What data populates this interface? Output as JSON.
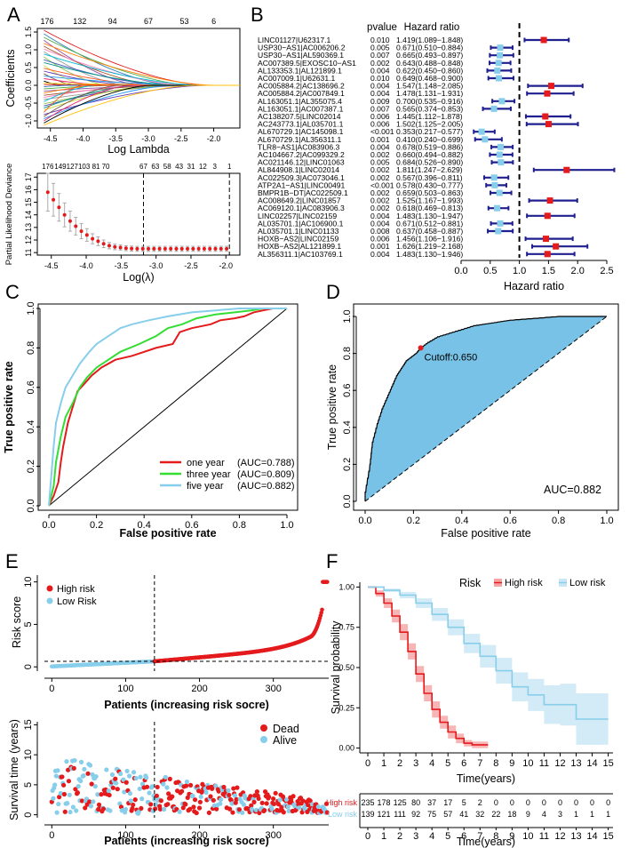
{
  "colors": {
    "red": "#e41a1c",
    "green": "#33dd33",
    "lightblue": "#87ceeb",
    "navy": "#1f1f8f",
    "darkred": "#cc0000",
    "rocfill": "#77c2e6",
    "band_high": "#f5a3a3",
    "band_low": "#c8e6f4"
  },
  "panels": {
    "a": "A",
    "b": "B",
    "c": "C",
    "d": "D",
    "e": "E",
    "f": "F"
  },
  "chart_data": [
    {
      "id": "A-top",
      "type": "line",
      "title": "",
      "xlabel": "Log Lambda",
      "ylabel": "Coefficients",
      "xlim": [
        -4.7,
        -1.6
      ],
      "ylim": [
        -1.2,
        1.6
      ],
      "x_ticks": [
        "-4.5",
        "-4.0",
        "-3.5",
        "-3.0",
        "-2.5",
        "-2.0"
      ],
      "x_tick_values": [
        -4.5,
        -4.0,
        -3.5,
        -3.0,
        -2.5,
        -2.0
      ],
      "y_ticks": [
        "-1.0",
        "-0.5",
        "0.0",
        "0.5",
        "1.0",
        "1.5"
      ],
      "y_tick_values": [
        -1.0,
        -0.5,
        0.0,
        0.5,
        1.0,
        1.5
      ],
      "top_axis_labels": [
        "176",
        "132",
        "94",
        "67",
        "53",
        "6"
      ],
      "top_axis_values": [
        -4.55,
        -4.05,
        -3.55,
        -3.0,
        -2.45,
        -2.0
      ],
      "series_count": 40,
      "start_values": [
        1.55,
        1.45,
        1.35,
        1.27,
        1.18,
        1.1,
        1.02,
        0.95,
        0.88,
        0.8,
        0.72,
        0.64,
        0.56,
        0.48,
        0.4,
        0.33,
        0.26,
        0.19,
        0.12,
        0.06,
        0.02,
        -0.04,
        -0.1,
        -0.16,
        -0.22,
        -0.28,
        -0.34,
        -0.4,
        -0.46,
        -0.52,
        -0.58,
        -0.64,
        -0.7,
        -0.76,
        -0.82,
        -0.88,
        -0.94,
        -1.0,
        -1.06,
        -1.12
      ],
      "zero_at": [
        -2.1,
        -2.6,
        -2.3,
        -3.1,
        -2.0,
        -2.8,
        -2.4,
        -3.3,
        -2.2,
        -3.6,
        -2.7,
        -2.5,
        -3.9,
        -2.9,
        -3.2,
        -4.1,
        -2.35,
        -3.5,
        -4.3,
        -2.05,
        -2.15,
        -4.2,
        -3.4,
        -2.45,
        -3.7,
        -2.65,
        -3.0,
        -2.25,
        -3.8,
        -2.55,
        -2.75,
        -3.15,
        -2.85,
        -4.0,
        -2.1,
        -3.45,
        -2.6,
        -3.25,
        -2.95,
        -2.3
      ]
    },
    {
      "id": "A-bottom",
      "type": "scatter",
      "xlabel": "Log(λ)",
      "ylabel": "Partial Likelihood Deviance",
      "xlim": [
        -4.7,
        -1.8
      ],
      "ylim": [
        10.8,
        17.3
      ],
      "x_ticks": [
        "-4.5",
        "-4.0",
        "-3.5",
        "-3.0",
        "-2.5",
        "-2.0"
      ],
      "x_tick_values": [
        -4.5,
        -4.0,
        -3.5,
        -3.0,
        -2.5,
        -2.0
      ],
      "y_ticks": [
        "11",
        "12",
        "13",
        "14",
        "15",
        "16",
        "17"
      ],
      "y_tick_values": [
        11,
        12,
        13,
        14,
        15,
        16,
        17
      ],
      "top_axis_labels": [
        "176",
        "149",
        "127",
        "103",
        "81",
        "70",
        "67",
        "63",
        "58",
        "43",
        "31",
        "12",
        "3",
        "1"
      ],
      "top_axis_values": [
        -4.55,
        -4.37,
        -4.2,
        -4.03,
        -3.86,
        -3.72,
        -3.18,
        -3.01,
        -2.84,
        -2.67,
        -2.5,
        -2.33,
        -2.16,
        -1.95
      ],
      "vlines": [
        -3.18,
        -1.95
      ],
      "x": [
        -4.55,
        -4.47,
        -4.39,
        -4.31,
        -4.23,
        -4.15,
        -4.07,
        -3.99,
        -3.91,
        -3.83,
        -3.75,
        -3.67,
        -3.59,
        -3.51,
        -3.43,
        -3.35,
        -3.27,
        -3.19,
        -3.11,
        -3.03,
        -2.95,
        -2.87,
        -2.79,
        -2.71,
        -2.63,
        -2.55,
        -2.47,
        -2.39,
        -2.31,
        -2.23,
        -2.15,
        -2.07,
        -1.99
      ],
      "y": [
        15.8,
        15.2,
        14.6,
        14.0,
        13.5,
        13.1,
        12.7,
        12.4,
        12.1,
        11.9,
        11.7,
        11.55,
        11.45,
        11.4,
        11.35,
        11.32,
        11.3,
        11.3,
        11.3,
        11.3,
        11.3,
        11.3,
        11.3,
        11.3,
        11.3,
        11.3,
        11.3,
        11.3,
        11.3,
        11.3,
        11.3,
        11.3,
        11.3
      ],
      "err": [
        1.5,
        1.3,
        1.1,
        0.95,
        0.8,
        0.7,
        0.6,
        0.5,
        0.4,
        0.35,
        0.3,
        0.25,
        0.22,
        0.2,
        0.2,
        0.2,
        0.2,
        0.2,
        0.2,
        0.2,
        0.2,
        0.2,
        0.2,
        0.2,
        0.2,
        0.2,
        0.2,
        0.2,
        0.2,
        0.2,
        0.2,
        0.2,
        0.2
      ]
    },
    {
      "id": "B",
      "type": "forest",
      "xlabel": "Hazard ratio",
      "xlim": [
        0,
        2.5
      ],
      "x_ticks": [
        "0.0",
        "0.5",
        "1.0",
        "1.5",
        "2.0",
        "2.5"
      ],
      "x_tick_values": [
        0.0,
        0.5,
        1.0,
        1.5,
        2.0,
        2.5
      ],
      "ref_line": 1.0,
      "col_pvalue": "pvalue",
      "col_hr": "Hazard ratio",
      "genes": [
        "LINC01127|U62317.1",
        "USP30−AS1|AC006206.2",
        "USP30−AS1|AL590369.1",
        "AC007389.5|EXOSC10−AS1",
        "AL133353.1|AL121899.1",
        "AC007009.1|U62631.1",
        "AC005884.2|AC138696.2",
        "AC005884.2|AC007849.1",
        "AL163051.1|AL355075.4",
        "AL163051.1|AC007387.1",
        "AC138207.5|LINC02014",
        "AC243773.1|AL035701.1",
        "AL670729.1|AC145098.1",
        "AL670729.1|AL356311.1",
        "TLR8−AS1|AC083906.3",
        "AC104667.2|AC099329.2",
        "AC021146.12|LINC01063",
        "AL844908.1|LINC02014",
        "AC022509.3|AC073046.1",
        "ATP2A1−AS1|LINC00491",
        "BMPR1B−DT|AC022509.1",
        "AC008649.2|LINC01857",
        "AC069120.1|AC083906.3",
        "LINC02257|LINC02159",
        "AL035701.1|AC106900.1",
        "AL035701.1|LINC01133",
        "HOXB−AS2|LINC02159",
        "HOXB−AS2|AL121899.1",
        "AL356311.1|AC103769.1"
      ],
      "pvalues": [
        "0.010",
        "0.005",
        "0.007",
        "0.002",
        "0.004",
        "0.010",
        "0.004",
        "0.004",
        "0.009",
        "0.007",
        "0.006",
        "0.006",
        "<0.001",
        "0.001",
        "0.004",
        "0.002",
        "0.005",
        "0.002",
        "0.002",
        "<0.001",
        "0.002",
        "0.002",
        "0.002",
        "0.004",
        "0.004",
        "0.008",
        "0.006",
        "0.001",
        "0.004"
      ],
      "hr_text": [
        "1.419(1.089−1.848)",
        "0.671(0.510−0.884)",
        "0.665(0.493−0.897)",
        "0.643(0.488−0.848)",
        "0.622(0.450−0.860)",
        "0.649(0.468−0.900)",
        "1.547(1.148−2.085)",
        "1.478(1.131−1.931)",
        "0.700(0.535−0.916)",
        "0.565(0.374−0.853)",
        "1.445(1.112−1.878)",
        "1.502(1.125−2.005)",
        "0.353(0.217−0.577)",
        "0.410(0.240−0.699)",
        "0.678(0.519−0.886)",
        "0.660(0.494−0.882)",
        "0.684(0.526−0.890)",
        "1.811(1.247−2.629)",
        "0.567(0.396−0.811)",
        "0.578(0.430−0.777)",
        "0.659(0.503−0.863)",
        "1.525(1.167−1.993)",
        "0.618(0.469−0.813)",
        "1.483(1.130−1.947)",
        "0.671(0.512−0.881)",
        "0.637(0.458−0.887)",
        "1.456(1.106−1.916)",
        "1.626(1.219−2.168)",
        "1.483(1.130−1.946)"
      ],
      "hr": [
        1.419,
        0.671,
        0.665,
        0.643,
        0.622,
        0.649,
        1.547,
        1.478,
        0.7,
        0.565,
        1.445,
        1.502,
        0.353,
        0.41,
        0.678,
        0.66,
        0.684,
        1.811,
        0.567,
        0.578,
        0.659,
        1.525,
        0.618,
        1.483,
        0.671,
        0.637,
        1.456,
        1.626,
        1.483
      ],
      "lo": [
        1.089,
        0.51,
        0.493,
        0.488,
        0.45,
        0.468,
        1.148,
        1.131,
        0.535,
        0.374,
        1.112,
        1.125,
        0.217,
        0.24,
        0.519,
        0.494,
        0.526,
        1.247,
        0.396,
        0.43,
        0.503,
        1.167,
        0.469,
        1.13,
        0.512,
        0.458,
        1.106,
        1.219,
        1.13
      ],
      "hi": [
        1.848,
        0.884,
        0.897,
        0.848,
        0.86,
        0.9,
        2.085,
        1.931,
        0.916,
        0.853,
        1.878,
        2.005,
        0.577,
        0.699,
        0.886,
        0.882,
        0.89,
        2.629,
        0.811,
        0.777,
        0.863,
        1.993,
        0.813,
        1.947,
        0.881,
        0.887,
        1.916,
        2.168,
        1.946
      ]
    },
    {
      "id": "C",
      "type": "line",
      "xlabel": "False positive rate",
      "ylabel": "True positive rate",
      "xlim": [
        0,
        1
      ],
      "ylim": [
        0,
        1
      ],
      "x_ticks": [
        "0.0",
        "0.2",
        "0.4",
        "0.6",
        "0.8",
        "1.0"
      ],
      "x_tick_values": [
        0,
        0.2,
        0.4,
        0.6,
        0.8,
        1.0
      ],
      "y_ticks": [
        "0.0",
        "0.2",
        "0.4",
        "0.6",
        "0.8",
        "1.0"
      ],
      "y_tick_values": [
        0,
        0.2,
        0.4,
        0.6,
        0.8,
        1.0
      ],
      "series": [
        {
          "name": "one year",
          "auc_text": "(AUC=0.788)",
          "color": "#e41a1c",
          "x": [
            0,
            0.02,
            0.04,
            0.05,
            0.06,
            0.08,
            0.1,
            0.12,
            0.15,
            0.18,
            0.22,
            0.28,
            0.35,
            0.45,
            0.52,
            0.55,
            0.6,
            0.68,
            0.72,
            0.78,
            0.82,
            0.86,
            0.9,
            0.94,
            1.0
          ],
          "y": [
            0,
            0.05,
            0.12,
            0.22,
            0.3,
            0.42,
            0.5,
            0.58,
            0.62,
            0.66,
            0.7,
            0.74,
            0.76,
            0.8,
            0.82,
            0.88,
            0.9,
            0.92,
            0.94,
            0.95,
            0.96,
            0.98,
            0.99,
            1.0,
            1.0
          ]
        },
        {
          "name": "three year",
          "auc_text": "(AUC=0.809)",
          "color": "#33dd33",
          "x": [
            0,
            0.02,
            0.03,
            0.05,
            0.07,
            0.1,
            0.13,
            0.16,
            0.2,
            0.25,
            0.3,
            0.38,
            0.45,
            0.5,
            0.56,
            0.62,
            0.7,
            0.78,
            0.85,
            0.9,
            0.95,
            1.0
          ],
          "y": [
            0,
            0.1,
            0.22,
            0.35,
            0.45,
            0.52,
            0.6,
            0.65,
            0.7,
            0.74,
            0.78,
            0.82,
            0.86,
            0.9,
            0.92,
            0.95,
            0.97,
            0.98,
            0.99,
            1.0,
            1.0,
            1.0
          ]
        },
        {
          "name": "five year",
          "auc_text": "(AUC=0.882)",
          "color": "#87ceeb",
          "x": [
            0,
            0.01,
            0.02,
            0.03,
            0.05,
            0.07,
            0.1,
            0.13,
            0.17,
            0.2,
            0.25,
            0.3,
            0.35,
            0.42,
            0.5,
            0.6,
            0.7,
            0.8,
            0.9,
            1.0
          ],
          "y": [
            0,
            0.15,
            0.3,
            0.42,
            0.52,
            0.6,
            0.66,
            0.72,
            0.78,
            0.82,
            0.86,
            0.9,
            0.92,
            0.94,
            0.96,
            0.98,
            0.99,
            1.0,
            1.0,
            1.0
          ]
        }
      ]
    },
    {
      "id": "D",
      "type": "area",
      "xlabel": "False positive rate",
      "ylabel": "True positive rate",
      "xlim": [
        0,
        1
      ],
      "ylim": [
        0,
        1
      ],
      "x_ticks": [
        "0.0",
        "0.2",
        "0.4",
        "0.6",
        "0.8",
        "1.0"
      ],
      "x_tick_values": [
        0,
        0.2,
        0.4,
        0.6,
        0.8,
        1.0
      ],
      "y_ticks": [
        "0.0",
        "0.2",
        "0.4",
        "0.6",
        "0.8",
        "1.0"
      ],
      "y_tick_values": [
        0,
        0.2,
        0.4,
        0.6,
        0.8,
        1.0
      ],
      "x": [
        0,
        0.0,
        0.02,
        0.03,
        0.05,
        0.07,
        0.09,
        0.11,
        0.13,
        0.15,
        0.17,
        0.19,
        0.21,
        0.23,
        0.26,
        0.3,
        0.35,
        0.4,
        0.45,
        0.5,
        0.55,
        0.6,
        0.7,
        0.8,
        0.9,
        1.0
      ],
      "y": [
        0,
        0.05,
        0.2,
        0.32,
        0.42,
        0.5,
        0.56,
        0.62,
        0.68,
        0.72,
        0.76,
        0.78,
        0.8,
        0.83,
        0.86,
        0.89,
        0.91,
        0.93,
        0.95,
        0.96,
        0.97,
        0.98,
        0.99,
        1.0,
        1.0,
        1.0
      ],
      "cutoff_label": "Cutoff:0.650",
      "cutoff_point": [
        0.23,
        0.83
      ],
      "auc_label": "AUC=0.882"
    },
    {
      "id": "E-top",
      "type": "scatter",
      "xlabel": "Patients (increasing risk socre)",
      "ylabel": "Risk score",
      "xlim": [
        -10,
        375
      ],
      "ylim": [
        -0.5,
        10.8
      ],
      "x_ticks": [
        "0",
        "100",
        "200",
        "300"
      ],
      "x_tick_values": [
        0,
        100,
        200,
        300
      ],
      "y_ticks": [
        "0",
        "5",
        "10"
      ],
      "y_tick_values": [
        0,
        5,
        10
      ],
      "cutoff_index": 139,
      "cutoff_value": 0.65,
      "total": 374,
      "legend": [
        "High risk",
        "Low Risk"
      ]
    },
    {
      "id": "E-bottom",
      "type": "scatter",
      "xlabel": "Patients (increasing risk socre)",
      "ylabel": "Survival time (years)",
      "xlim": [
        -10,
        375
      ],
      "ylim": [
        -0.5,
        15.5
      ],
      "x_ticks": [
        "0",
        "100",
        "200",
        "300"
      ],
      "x_tick_values": [
        0,
        100,
        200,
        300
      ],
      "y_ticks": [
        "0",
        "5",
        "10",
        "15"
      ],
      "y_tick_values": [
        0,
        5,
        10,
        15
      ],
      "cutoff_index": 139,
      "legend": [
        "Dead",
        "Alive"
      ]
    },
    {
      "id": "F",
      "type": "line",
      "xlabel": "Time(years)",
      "ylabel": "Survival probability",
      "xlim": [
        -0.5,
        15.3
      ],
      "ylim": [
        -0.03,
        1.03
      ],
      "x_ticks": [
        "0",
        "1",
        "2",
        "3",
        "4",
        "5",
        "6",
        "7",
        "8",
        "9",
        "10",
        "11",
        "12",
        "13",
        "14",
        "15"
      ],
      "x_tick_values": [
        0,
        1,
        2,
        3,
        4,
        5,
        6,
        7,
        8,
        9,
        10,
        11,
        12,
        13,
        14,
        15
      ],
      "y_ticks": [
        "0.00",
        "0.25",
        "0.50",
        "0.75",
        "1.00"
      ],
      "y_tick_values": [
        0,
        0.25,
        0.5,
        0.75,
        1.0
      ],
      "legend_title": "Risk",
      "series": [
        {
          "name": "High risk",
          "color": "#e41a1c",
          "x": [
            0,
            0.5,
            1,
            1.5,
            2,
            2.5,
            3,
            3.5,
            4,
            4.5,
            5,
            5.5,
            6,
            6.5,
            7,
            7.5
          ],
          "y": [
            1.0,
            0.96,
            0.9,
            0.82,
            0.72,
            0.6,
            0.46,
            0.34,
            0.24,
            0.16,
            0.1,
            0.06,
            0.03,
            0.02,
            0.02,
            0.02
          ],
          "band": [
            0.0,
            0.02,
            0.03,
            0.04,
            0.05,
            0.05,
            0.05,
            0.05,
            0.05,
            0.04,
            0.04,
            0.03,
            0.02,
            0.02,
            0.02,
            0.02
          ]
        },
        {
          "name": "Low risk",
          "color": "#87ceeb",
          "x": [
            0,
            1,
            2,
            3,
            4,
            5,
            6,
            7,
            8,
            9,
            10,
            11,
            12,
            13,
            14,
            15
          ],
          "y": [
            1.0,
            0.98,
            0.95,
            0.9,
            0.83,
            0.75,
            0.65,
            0.57,
            0.48,
            0.38,
            0.33,
            0.27,
            0.27,
            0.18,
            0.18,
            0.18
          ],
          "band": [
            0.0,
            0.01,
            0.02,
            0.03,
            0.04,
            0.05,
            0.06,
            0.07,
            0.08,
            0.09,
            0.1,
            0.12,
            0.13,
            0.16,
            0.16,
            0.16
          ]
        }
      ],
      "risk_table": {
        "xlabel": "Time(years)",
        "rows": [
          {
            "label": "High risk",
            "color": "#e41a1c",
            "values": [
              "235",
              "178",
              "125",
              "80",
              "37",
              "17",
              "5",
              "2",
              "0",
              "0",
              "0",
              "0",
              "0",
              "0",
              "0",
              "0"
            ]
          },
          {
            "label": "Low risk",
            "color": "#87ceeb",
            "values": [
              "139",
              "121",
              "111",
              "92",
              "75",
              "57",
              "41",
              "32",
              "22",
              "18",
              "9",
              "4",
              "3",
              "1",
              "1",
              "1"
            ]
          }
        ]
      }
    }
  ]
}
